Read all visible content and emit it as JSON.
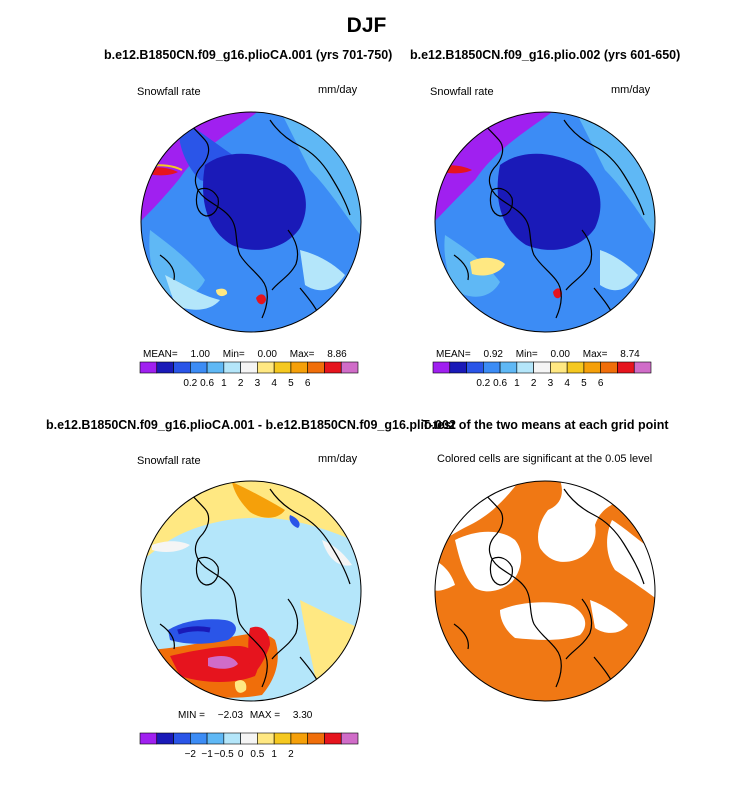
{
  "figure": {
    "title": "DJF"
  },
  "colors": {
    "snow_scale": [
      "#a020f0",
      "#1a1ab8",
      "#2a55e8",
      "#3c8cf5",
      "#5fb8f5",
      "#b4e6fa",
      "#f5f5f5",
      "#ffe882",
      "#f5c820",
      "#f5a00a",
      "#f06e0a",
      "#e6141e",
      "#d06cc8"
    ],
    "diff_scale": [
      "#a020f0",
      "#1a1ab8",
      "#2a55e8",
      "#3c8cf5",
      "#5fb8f5",
      "#b4e6fa",
      "#f5f5f5",
      "#ffe882",
      "#f5c820",
      "#f5a00a",
      "#f06e0a",
      "#e6141e",
      "#d06cc8"
    ],
    "significance": "#f07814"
  },
  "chart_data": [
    {
      "type": "heatmap",
      "panel": "top-left",
      "title": "b.e12.B1850CN.f09_g16.plioCA.001 (yrs 701-750)",
      "left_label": "Snowfall rate",
      "right_label": "mm/day",
      "projection": "north polar stereographic",
      "stats": {
        "mean_label": "MEAN=",
        "mean": "1.00",
        "min_label": "Min=",
        "min": "0.00",
        "max_label": "Max=",
        "max": "8.86"
      },
      "colorbar_ticks": [
        "0.2",
        "0.6",
        "1",
        "2",
        "3",
        "4",
        "5",
        "6"
      ]
    },
    {
      "type": "heatmap",
      "panel": "top-right",
      "title": "b.e12.B1850CN.f09_g16.plio.002 (yrs 601-650)",
      "left_label": "Snowfall rate",
      "right_label": "mm/day",
      "projection": "north polar stereographic",
      "stats": {
        "mean_label": "MEAN=",
        "mean": "0.92",
        "min_label": "Min=",
        "min": "0.00",
        "max_label": "Max=",
        "max": "8.74"
      },
      "colorbar_ticks": [
        "0.2",
        "0.6",
        "1",
        "2",
        "3",
        "4",
        "5",
        "6"
      ]
    },
    {
      "type": "heatmap",
      "panel": "bottom-left",
      "title": "b.e12.B1850CN.f09_g16.plioCA.001 - b.e12.B1850CN.f09_g16.plio.002",
      "left_label": "Snowfall rate",
      "right_label": "mm/day",
      "projection": "north polar stereographic",
      "stats": {
        "min_label": "MIN =",
        "min": "−2.03",
        "max_label": "MAX =",
        "max": "3.30"
      },
      "colorbar_ticks": [
        "−2",
        "−1",
        "−0.5",
        "0",
        "0.5",
        "1",
        "2"
      ]
    },
    {
      "type": "heatmap",
      "panel": "bottom-right",
      "title": "T-test of the two means at each grid point",
      "left_label": "Colored cells are significant at the 0.05 level",
      "projection": "north polar stereographic"
    }
  ]
}
